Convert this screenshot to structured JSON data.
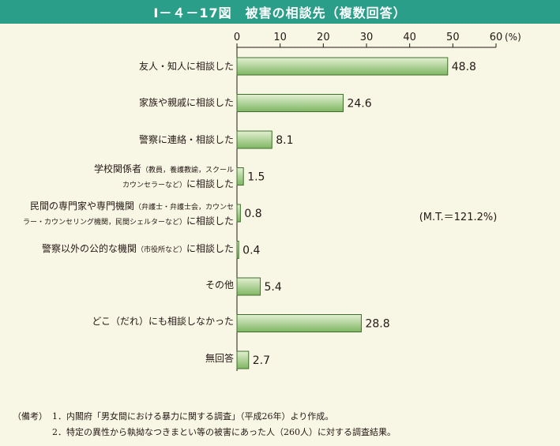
{
  "title": "Ⅰ－４－17図　被害の相談先（複数回答）",
  "colors": {
    "title_bg": "#2b9e8a",
    "bar_fill_light": "#e3f0d2",
    "bar_fill_dark": "#7fb663",
    "bar_stroke": "#3f6e2c"
  },
  "chart_data": {
    "type": "bar",
    "orientation": "horizontal",
    "title": "Ⅰ－４－17図　被害の相談先（複数回答）",
    "x_unit": "(%)",
    "xlim": [
      0,
      60
    ],
    "x_ticks": [
      0,
      10,
      20,
      30,
      40,
      50,
      60
    ],
    "grid": false,
    "annotation": "(M.T.＝121.2%)",
    "categories": [
      "友人・知人に相談した",
      "家族や親戚に相談した",
      "警察に連絡・相談した",
      "学校関係者（教員，養護教諭，スクールカウンセラーなど）に相談した",
      "民間の専門家や専門機関（弁護士・弁護士会，カウンセラー・カウンセリング機関，民間シェルターなど）に相談した",
      "警察以外の公的な機関（市役所など）に相談した",
      "その他",
      "どこ（だれ）にも相談しなかった",
      "無回答"
    ],
    "values": [
      48.8,
      24.6,
      8.1,
      1.5,
      0.8,
      0.4,
      5.4,
      28.8,
      2.7
    ],
    "value_labels": [
      "48.8",
      "24.6",
      "8.1",
      "1.5",
      "0.8",
      "0.4",
      "5.4",
      "28.8",
      "2.7"
    ]
  },
  "labels": {
    "c0": "友人・知人に相談した",
    "c1": "家族や親戚に相談した",
    "c2": "警察に連絡・相談した",
    "c3_line1": "学校関係者",
    "c3_small1": "（教員，養護教諭，スクール",
    "c3_small2": "カウンセラーなど）",
    "c3_line2": "に相談した",
    "c4_line1": "民間の専門家や専門機関",
    "c4_small1": "（弁護士・弁護士会，カウンセ",
    "c4_small2": "ラー・カウンセリング機関，民間シェルターなど）",
    "c4_line2": "に相談した",
    "c5_main1": "警察以外の公的な機関",
    "c5_small": "（市役所など）",
    "c5_main2": "に相談した",
    "c6": "その他",
    "c7": "どこ（だれ）にも相談しなかった",
    "c8": "無回答"
  },
  "notes": {
    "prefix": "（備考）",
    "items": [
      {
        "num": "1．",
        "text": "内閣府「男女間における暴力に関する調査」（平成26年）より作成。"
      },
      {
        "num": "2．",
        "text": "特定の異性から執拗なつきまとい等の被害にあった人（260人）に対する調査結果。"
      }
    ]
  }
}
